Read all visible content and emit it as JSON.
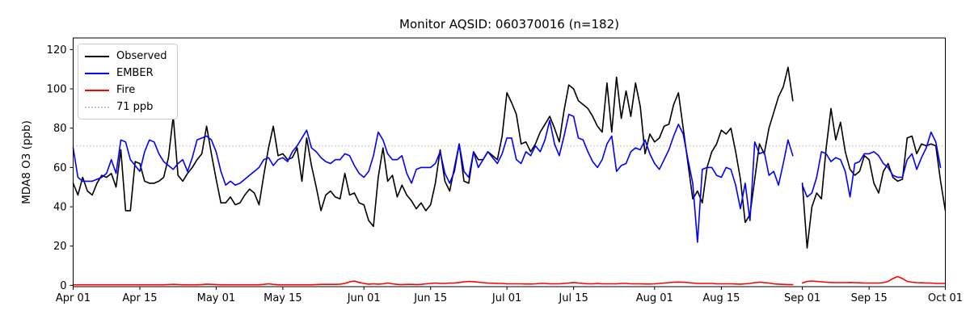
{
  "figure": {
    "title": "Monitor AQSID: 060370016 (n=182)",
    "y_axis_label": "MDA8 O3 (ppb)"
  },
  "legend": {
    "items": [
      {
        "label": "Observed",
        "color": "#000000",
        "style": "solid"
      },
      {
        "label": "EMBER",
        "color": "#0000ff",
        "style": "solid"
      },
      {
        "label": "Fire",
        "color": "#ff0000",
        "style": "solid"
      },
      {
        "label": "71 ppb",
        "color": "#c8c8c8",
        "style": "dotted"
      }
    ]
  },
  "chart_data": {
    "type": "line",
    "title": "Monitor AQSID: 060370016 (n=182)",
    "xlabel": "",
    "ylabel": "MDA8 O3 (ppb)",
    "ylim": [
      -1,
      126
    ],
    "yticks": [
      0,
      20,
      40,
      60,
      80,
      100,
      120
    ],
    "x_unit": "day index from Apr 01",
    "x_range_days": 183,
    "xticks": [
      {
        "day": 0,
        "label": "Apr 01"
      },
      {
        "day": 14,
        "label": "Apr 15"
      },
      {
        "day": 30,
        "label": "May 01"
      },
      {
        "day": 44,
        "label": "May 15"
      },
      {
        "day": 61,
        "label": "Jun 01"
      },
      {
        "day": 75,
        "label": "Jun 15"
      },
      {
        "day": 91,
        "label": "Jul 01"
      },
      {
        "day": 105,
        "label": "Jul 15"
      },
      {
        "day": 122,
        "label": "Aug 01"
      },
      {
        "day": 136,
        "label": "Aug 15"
      },
      {
        "day": 153,
        "label": "Sep 01"
      },
      {
        "day": 167,
        "label": "Sep 15"
      },
      {
        "day": 183,
        "label": "Oct 01"
      }
    ],
    "threshold": {
      "value": 71,
      "label": "71 ppb",
      "color": "#c8c8c8",
      "style": "dotted"
    },
    "legend_position": "upper left",
    "grid": false,
    "series": [
      {
        "name": "Observed",
        "color": "#000000",
        "values": [
          52,
          46,
          55,
          48,
          46,
          52,
          56,
          55,
          57,
          50,
          69,
          38,
          38,
          63,
          62,
          53,
          52,
          52,
          53,
          55,
          65,
          86,
          56,
          53,
          57,
          60,
          64,
          67,
          81,
          67,
          54,
          42,
          42,
          45,
          41,
          42,
          46,
          49,
          47,
          41,
          56,
          70,
          81,
          66,
          67,
          64,
          65,
          70,
          53,
          75,
          61,
          50,
          38,
          46,
          48,
          45,
          44,
          57,
          46,
          47,
          42,
          41,
          33,
          30,
          55,
          70,
          53,
          56,
          45,
          51,
          46,
          43,
          39,
          42,
          38,
          41,
          52,
          69,
          53,
          48,
          60,
          72,
          53,
          52,
          68,
          64,
          64,
          68,
          66,
          64,
          76,
          98,
          93,
          87,
          72,
          73,
          68,
          72,
          78,
          82,
          86,
          80,
          73,
          89,
          102,
          100,
          94,
          92,
          90,
          86,
          81,
          78,
          103,
          78,
          106,
          85,
          99,
          86,
          103,
          91,
          67,
          77,
          73,
          75,
          81,
          82,
          92,
          98,
          80,
          62,
          44,
          48,
          42,
          60,
          68,
          72,
          79,
          77,
          80,
          68,
          54,
          32,
          36,
          54,
          72,
          67,
          80,
          88,
          96,
          101,
          111,
          94,
          null,
          52,
          19,
          40,
          47,
          44,
          70,
          90,
          74,
          83,
          68,
          59,
          56,
          58,
          66,
          64,
          52,
          47,
          58,
          62,
          55,
          53,
          54,
          75,
          76,
          67,
          72,
          71,
          72,
          71,
          53,
          38
        ]
      },
      {
        "name": "EMBER",
        "color": "#0000ff",
        "values": [
          70,
          55,
          53,
          53,
          53,
          54,
          55,
          57,
          64,
          57,
          74,
          73,
          64,
          61,
          58,
          68,
          74,
          73,
          67,
          63,
          61,
          59,
          62,
          64,
          58,
          65,
          74,
          75,
          76,
          74,
          68,
          58,
          51,
          53,
          51,
          52,
          54,
          56,
          58,
          60,
          64,
          65,
          61,
          64,
          65,
          63,
          68,
          71,
          75,
          79,
          70,
          68,
          65,
          63,
          62,
          64,
          64,
          67,
          66,
          61,
          57,
          55,
          58,
          66,
          78,
          74,
          67,
          64,
          64,
          66,
          57,
          52,
          59,
          60,
          60,
          60,
          62,
          68,
          57,
          52,
          58,
          72,
          58,
          55,
          68,
          60,
          64,
          68,
          65,
          62,
          67,
          75,
          75,
          64,
          62,
          68,
          66,
          71,
          68,
          74,
          84,
          72,
          66,
          76,
          87,
          86,
          75,
          74,
          68,
          63,
          60,
          64,
          72,
          76,
          58,
          61,
          62,
          68,
          70,
          69,
          74,
          67,
          62,
          59,
          64,
          69,
          76,
          82,
          77,
          64,
          52,
          22,
          59,
          60,
          60,
          56,
          55,
          60,
          59,
          51,
          39,
          52,
          33,
          73,
          67,
          68,
          56,
          58,
          51,
          62,
          74,
          66,
          null,
          51,
          45,
          47,
          55,
          68,
          67,
          63,
          65,
          64,
          58,
          45,
          62,
          63,
          67,
          67,
          68,
          66,
          62,
          60,
          56,
          55,
          55,
          64,
          67,
          59,
          65,
          70,
          78,
          73,
          60,
          null
        ]
      },
      {
        "name": "Fire",
        "color": "#ff0000",
        "values": [
          0.3,
          0.3,
          0.3,
          0.3,
          0.3,
          0.3,
          0.3,
          0.3,
          0.3,
          0.3,
          0.3,
          0.3,
          0.3,
          0.3,
          0.3,
          0.3,
          0.3,
          0.3,
          0.3,
          0.3,
          0.4,
          0.5,
          0.4,
          0.3,
          0.3,
          0.3,
          0.3,
          0.4,
          0.6,
          0.5,
          0.4,
          0.3,
          0.3,
          0.3,
          0.3,
          0.3,
          0.3,
          0.3,
          0.3,
          0.3,
          0.5,
          0.8,
          0.5,
          0.3,
          0.3,
          0.3,
          0.3,
          0.3,
          0.3,
          0.3,
          0.3,
          0.4,
          0.5,
          0.5,
          0.5,
          0.5,
          0.6,
          1.0,
          1.8,
          2.2,
          1.5,
          1.0,
          0.6,
          0.8,
          0.6,
          0.8,
          1.2,
          0.8,
          0.5,
          0.4,
          0.5,
          0.5,
          0.4,
          0.5,
          0.8,
          1.0,
          1.2,
          1.0,
          1.0,
          1.2,
          1.2,
          1.5,
          1.8,
          2.0,
          1.9,
          1.6,
          1.4,
          1.2,
          1.1,
          1.0,
          1.0,
          0.8,
          0.8,
          0.8,
          0.8,
          0.7,
          0.7,
          0.8,
          1.0,
          1.0,
          0.8,
          0.8,
          0.8,
          1.0,
          1.2,
          1.5,
          1.2,
          1.0,
          0.8,
          0.8,
          1.0,
          0.8,
          0.8,
          0.8,
          0.8,
          1.0,
          1.0,
          0.8,
          0.8,
          0.8,
          0.7,
          0.7,
          0.8,
          1.0,
          1.2,
          1.4,
          1.6,
          1.7,
          1.6,
          1.4,
          1.2,
          1.0,
          1.0,
          1.0,
          1.0,
          0.8,
          0.8,
          0.8,
          0.8,
          0.7,
          0.6,
          0.8,
          1.0,
          1.4,
          1.6,
          1.4,
          1.2,
          0.8,
          0.6,
          0.5,
          0.4,
          0.4,
          null,
          1.2,
          2.0,
          2.2,
          2.0,
          1.8,
          1.6,
          1.5,
          1.4,
          1.4,
          1.4,
          1.5,
          1.4,
          1.3,
          1.2,
          1.2,
          1.2,
          1.2,
          1.4,
          2.0,
          3.5,
          4.5,
          3.5,
          2.0,
          1.6,
          1.4,
          1.3,
          1.2,
          1.2,
          1.0,
          1.0,
          1.0
        ]
      }
    ]
  }
}
